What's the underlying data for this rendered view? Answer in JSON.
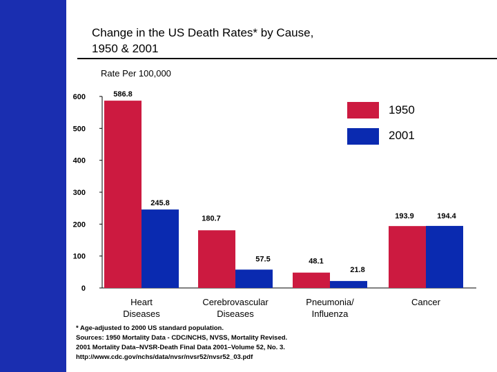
{
  "title": {
    "line1": "Change in the US Death Rates* by Cause,",
    "line2": "1950 & 2001"
  },
  "chart_data": {
    "type": "bar",
    "ylabel": "Rate Per 100,000",
    "xlabel": "",
    "ylim": [
      0,
      600
    ],
    "yticks": [
      "0",
      "100",
      "200",
      "300",
      "400",
      "500",
      "600"
    ],
    "grid": false,
    "legend_position": "top-right",
    "categories": [
      {
        "line1": "Heart",
        "line2": "Diseases"
      },
      {
        "line1": "Cerebrovascular",
        "line2": "Diseases"
      },
      {
        "line1": "Pneumonia/",
        "line2": "Influenza"
      },
      {
        "line1": "Cancer",
        "line2": ""
      }
    ],
    "series": [
      {
        "name": "1950",
        "color": "#cc1a40",
        "values": [
          586.8,
          180.7,
          48.1,
          193.9
        ],
        "labels": [
          "586.8",
          "180.7",
          "48.1",
          "193.9"
        ]
      },
      {
        "name": "2001",
        "color": "#0a2ab0",
        "values": [
          245.8,
          57.5,
          21.8,
          194.4
        ],
        "labels": [
          "245.8",
          "57.5",
          "21.8",
          "194.4"
        ]
      }
    ]
  },
  "footnote": {
    "line1": "* Age-adjusted to 2000 US standard population.",
    "line2": "Sources: 1950 Mortality Data - CDC/NCHS, NVSS, Mortality Revised.",
    "line3": "2001 Mortality Data–NVSR-Death Final Data 2001–Volume 52, No. 3.",
    "line4": "http://www.cdc.gov/nchs/data/nvsr/nvsr52/nvsr52_03.pdf"
  },
  "colors": {
    "side_band": "#1a2eb0"
  }
}
